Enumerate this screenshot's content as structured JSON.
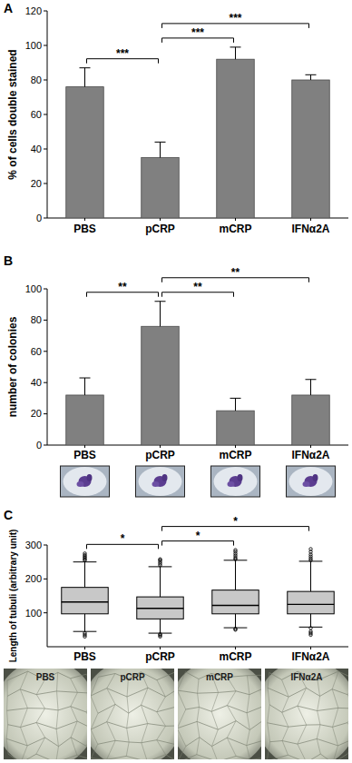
{
  "chart_data": [
    {
      "panel": "A",
      "type": "bar",
      "ylabel": "% of cells double stained",
      "categories": [
        "PBS",
        "pCRP",
        "mCRP",
        "IFNα2A"
      ],
      "values": [
        76,
        35,
        92,
        80
      ],
      "errors": [
        11,
        9,
        7,
        3
      ],
      "color": "#808080",
      "ylim": [
        0,
        120
      ],
      "yticks": [
        0,
        20,
        40,
        60,
        80,
        100,
        120
      ],
      "grid": false,
      "annotations": [
        {
          "text": "***",
          "between": [
            "PBS",
            "pCRP"
          ]
        },
        {
          "text": "***",
          "between": [
            "pCRP",
            "mCRP"
          ]
        },
        {
          "text": "***",
          "between": [
            "pCRP",
            "IFNα2A"
          ]
        }
      ]
    },
    {
      "panel": "B",
      "type": "bar",
      "ylabel": "number of colonies",
      "categories": [
        "PBS",
        "pCRP",
        "mCRP",
        "IFNα2A"
      ],
      "values": [
        32,
        76,
        22,
        32
      ],
      "errors": [
        11,
        16,
        8,
        10
      ],
      "color": "#808080",
      "ylim": [
        0,
        100
      ],
      "yticks": [
        0,
        20,
        40,
        60,
        80,
        100
      ],
      "grid": false,
      "annotations": [
        {
          "text": "**",
          "between": [
            "PBS",
            "pCRP"
          ]
        },
        {
          "text": "**",
          "between": [
            "pCRP",
            "mCRP"
          ]
        },
        {
          "text": "**",
          "between": [
            "pCRP",
            "IFNα2A"
          ]
        }
      ]
    },
    {
      "panel": "C",
      "type": "box",
      "ylabel": "Length of tubuli (arbitrary unit)",
      "categories": [
        "PBS",
        "pCRP",
        "mCRP",
        "IFNα2A"
      ],
      "boxes": [
        {
          "whisker_low": 45,
          "q1": 97,
          "median": 132,
          "q3": 175,
          "whisker_high": 250,
          "outliers": [
            30,
            35,
            40,
            255,
            258,
            262,
            266,
            270,
            275
          ]
        },
        {
          "whisker_low": 40,
          "q1": 82,
          "median": 113,
          "q3": 147,
          "whisker_high": 236,
          "outliers": [
            30,
            34,
            37,
            240,
            245,
            250,
            255,
            258
          ]
        },
        {
          "whisker_low": 56,
          "q1": 97,
          "median": 122,
          "q3": 167,
          "whisker_high": 255,
          "outliers": [
            50,
            53,
            258,
            262,
            268,
            274,
            280,
            285
          ]
        },
        {
          "whisker_low": 58,
          "q1": 97,
          "median": 125,
          "q3": 163,
          "whisker_high": 252,
          "outliers": [
            35,
            40,
            45,
            55,
            255,
            260,
            266,
            272,
            280,
            288
          ]
        }
      ],
      "color": "#c8c8c8",
      "ylim": [
        0,
        300
      ],
      "yticks": [
        100,
        200,
        300
      ],
      "grid": false,
      "annotations": [
        {
          "text": "*",
          "between": [
            "PBS",
            "pCRP"
          ]
        },
        {
          "text": "*",
          "between": [
            "pCRP",
            "mCRP"
          ]
        },
        {
          "text": "*",
          "between": [
            "pCRP",
            "IFNα2A"
          ]
        }
      ],
      "image_labels": [
        "PBS",
        "pCRP",
        "mCRP",
        "IFNα2A"
      ]
    }
  ]
}
